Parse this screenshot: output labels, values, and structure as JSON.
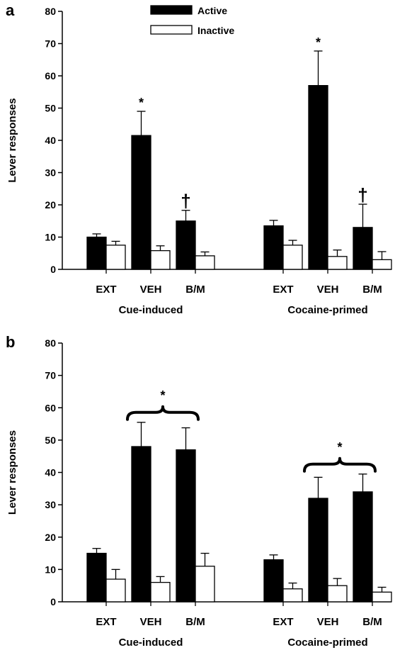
{
  "chart_data": [
    {
      "type": "bar",
      "panel": "a",
      "ylabel": "Lever responses",
      "ylim": [
        0,
        80
      ],
      "yticks": [
        0,
        10,
        20,
        30,
        40,
        50,
        60,
        70,
        80
      ],
      "legend": {
        "placement": "top-center",
        "entries": [
          "Active",
          "Inactive"
        ]
      },
      "groups": [
        {
          "label": "Cue-induced",
          "categories": [
            "EXT",
            "VEH",
            "B/M"
          ],
          "series": [
            {
              "name": "Active",
              "values": [
                10,
                41.5,
                15
              ],
              "errors": [
                1,
                7.5,
                3.3
              ],
              "color": "#000000"
            },
            {
              "name": "Inactive",
              "values": [
                7.5,
                5.8,
                4.2
              ],
              "errors": [
                1.2,
                1.5,
                1.2
              ],
              "color": "#ffffff"
            }
          ],
          "marks": [
            "",
            "*",
            "†"
          ]
        },
        {
          "label": "Cocaine-primed",
          "categories": [
            "EXT",
            "VEH",
            "B/M"
          ],
          "series": [
            {
              "name": "Active",
              "values": [
                13.5,
                57,
                13
              ],
              "errors": [
                1.7,
                10.7,
                7.2
              ],
              "color": "#000000"
            },
            {
              "name": "Inactive",
              "values": [
                7.5,
                4,
                3
              ],
              "errors": [
                1.5,
                2,
                2.5
              ],
              "color": "#ffffff"
            }
          ],
          "marks": [
            "",
            "*",
            "†"
          ]
        }
      ]
    },
    {
      "type": "bar",
      "panel": "b",
      "ylabel": "Lever responses",
      "ylim": [
        0,
        80
      ],
      "yticks": [
        0,
        10,
        20,
        30,
        40,
        50,
        60,
        70,
        80
      ],
      "groups": [
        {
          "label": "Cue-induced",
          "categories": [
            "EXT",
            "VEH",
            "B/M"
          ],
          "series": [
            {
              "name": "Active",
              "values": [
                15,
                48,
                47
              ],
              "errors": [
                1.5,
                7.5,
                6.8
              ],
              "color": "#000000"
            },
            {
              "name": "Inactive",
              "values": [
                7,
                6,
                11
              ],
              "errors": [
                3,
                1.8,
                4
              ],
              "color": "#ffffff"
            }
          ],
          "bracket_mark": "*"
        },
        {
          "label": "Cocaine-primed",
          "categories": [
            "EXT",
            "VEH",
            "B/M"
          ],
          "series": [
            {
              "name": "Active",
              "values": [
                13,
                32,
                34
              ],
              "errors": [
                1.5,
                6.5,
                5.5
              ],
              "color": "#000000"
            },
            {
              "name": "Inactive",
              "values": [
                4,
                5,
                3
              ],
              "errors": [
                1.8,
                2.2,
                1.5
              ],
              "color": "#ffffff"
            }
          ],
          "bracket_mark": "*"
        }
      ]
    }
  ]
}
